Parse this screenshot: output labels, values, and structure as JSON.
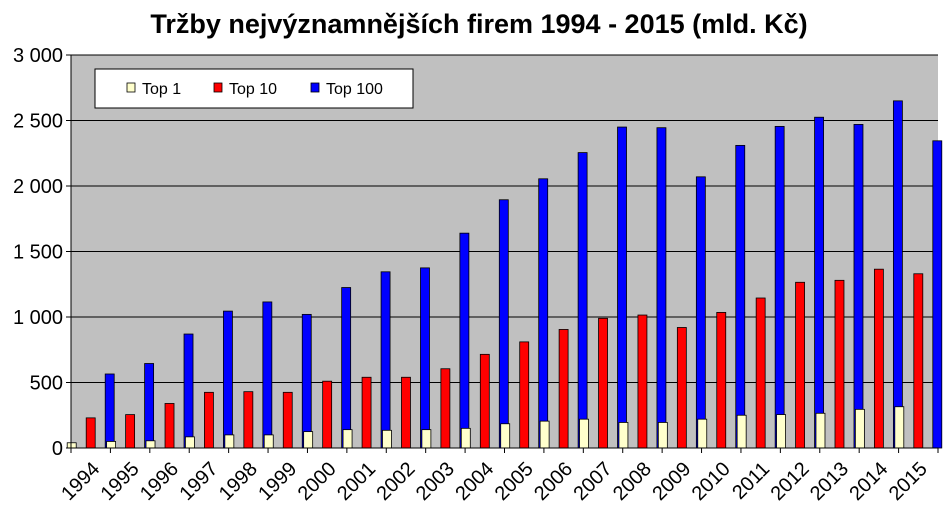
{
  "chart_data": {
    "type": "bar",
    "title": "Tržby nejvýznamnějších firem 1994 - 2015 (mld. Kč)",
    "xlabel": "",
    "ylabel": "",
    "ylim": [
      0,
      3000
    ],
    "yticks": [
      0,
      500,
      1000,
      1500,
      2000,
      2500,
      3000
    ],
    "ytick_labels": [
      "0",
      "500",
      "1 000",
      "1 500",
      "2 000",
      "2 500",
      "3 000"
    ],
    "grid": true,
    "legend_position": "top-left",
    "categories": [
      "1994",
      "1995",
      "1996",
      "1997",
      "1998",
      "1999",
      "2000",
      "2001",
      "2002",
      "2003",
      "2004",
      "2005",
      "2006",
      "2007",
      "2008",
      "2009",
      "2010",
      "2011",
      "2012",
      "2013",
      "2014",
      "2015"
    ],
    "series": [
      {
        "name": "Top 1",
        "color": "#FFFFCC",
        "values": [
          40,
          50,
          55,
          85,
          100,
          100,
          125,
          140,
          135,
          140,
          150,
          185,
          205,
          220,
          195,
          195,
          220,
          250,
          255,
          265,
          295,
          315
        ]
      },
      {
        "name": "Top 10",
        "color": "#FF0000",
        "values": [
          230,
          255,
          340,
          425,
          430,
          425,
          510,
          540,
          540,
          605,
          715,
          810,
          905,
          990,
          1015,
          920,
          1035,
          1145,
          1265,
          1280,
          1365,
          1330
        ]
      },
      {
        "name": "Top 100",
        "color": "#0000FF",
        "values": [
          565,
          645,
          870,
          1045,
          1115,
          1020,
          1225,
          1345,
          1375,
          1640,
          1895,
          2055,
          2255,
          2450,
          2445,
          2070,
          2310,
          2455,
          2525,
          2470,
          2650,
          2345
        ]
      }
    ],
    "colors": {
      "plot_background": "#C0C0C0",
      "gridline": "#000000",
      "axis": "#000000"
    }
  }
}
